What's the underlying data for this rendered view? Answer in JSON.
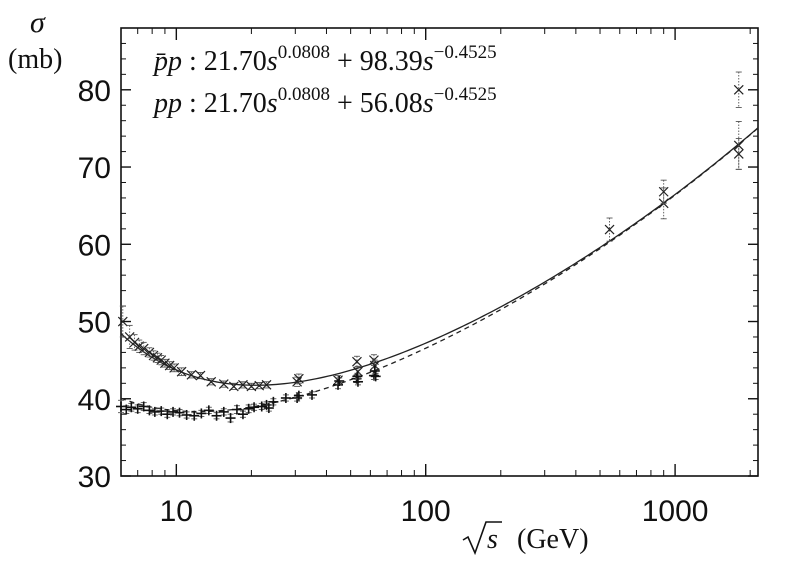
{
  "chart_data": {
    "type": "scatter",
    "title": "",
    "ylabel_symbol": "σ",
    "ylabel_unit": "(mb)",
    "xlabel_sqrt": "√s",
    "xlabel_unit": "(GeV)",
    "xscale": "log",
    "xlim": [
      6,
      2150
    ],
    "ylim": [
      30,
      88
    ],
    "yticks": [
      30,
      40,
      50,
      60,
      70,
      80
    ],
    "ytick_labels": [
      "30",
      "40",
      "50",
      "60",
      "70",
      "80"
    ],
    "xticks": [
      10,
      100,
      1000
    ],
    "xtick_labels": [
      "10",
      "100",
      "1000"
    ],
    "grid": false,
    "legend": {
      "placement": "top-left",
      "entries": [
        {
          "id": "pbarp",
          "prefix": "p̄p",
          "coef1": "21.70",
          "var1": "s",
          "exp1": "0.0808",
          "coef2": "+ 98.39",
          "var2": "s",
          "exp2": "−0.4525"
        },
        {
          "id": "pp",
          "prefix": "pp",
          "coef1": "21.70",
          "var1": "s",
          "exp1": "0.0808",
          "coef2": "+ 56.08",
          "var2": "s",
          "exp2": "−0.4525"
        }
      ]
    },
    "fits": [
      {
        "name": "p̄p fit",
        "style": "solid",
        "A": 21.7,
        "eps": 0.0808,
        "B": 98.39,
        "eta": 0.4525
      },
      {
        "name": "pp fit",
        "style": "dashed",
        "A": 21.7,
        "eps": 0.0808,
        "B": 56.08,
        "eta": 0.4525
      }
    ],
    "series": [
      {
        "name": "p̄p data",
        "marker": "x",
        "points": [
          [
            6.1,
            50.0,
            2.0
          ],
          [
            6.5,
            48.0,
            1.5
          ],
          [
            6.8,
            47.3,
            1.0
          ],
          [
            7.1,
            46.8,
            0.8
          ],
          [
            7.4,
            46.5,
            0.8
          ],
          [
            7.8,
            46.0,
            0.6
          ],
          [
            8.1,
            45.6,
            0.6
          ],
          [
            8.4,
            45.3,
            0.6
          ],
          [
            8.7,
            45.0,
            0.6
          ],
          [
            9.0,
            44.6,
            0.5
          ],
          [
            9.4,
            44.3,
            0.5
          ],
          [
            9.8,
            44.0,
            0.5
          ],
          [
            10.5,
            43.5,
            0.5
          ],
          [
            11.5,
            43.1,
            0.4
          ],
          [
            12.5,
            43.0,
            0.4
          ],
          [
            13.8,
            42.2,
            0.4
          ],
          [
            15.5,
            41.9,
            0.4
          ],
          [
            17.0,
            41.6,
            0.4
          ],
          [
            18.5,
            41.8,
            0.4
          ],
          [
            20.0,
            41.6,
            0.4
          ],
          [
            21.5,
            41.7,
            0.4
          ],
          [
            23.0,
            41.8,
            0.4
          ],
          [
            30.5,
            42.2,
            0.6
          ],
          [
            31.0,
            42.6,
            0.6
          ],
          [
            44.5,
            42.4,
            0.6
          ],
          [
            53.0,
            44.8,
            0.7
          ],
          [
            53.5,
            43.5,
            0.7
          ],
          [
            62.0,
            45.0,
            0.7
          ],
          [
            62.5,
            44.3,
            0.7
          ],
          [
            546,
            61.9,
            1.5
          ],
          [
            900,
            65.3,
            2.0
          ],
          [
            900,
            66.8,
            1.5
          ],
          [
            1800,
            80.0,
            2.3
          ],
          [
            1800,
            72.8,
            3.1
          ],
          [
            1800,
            71.7,
            2.0
          ]
        ]
      },
      {
        "name": "pp data",
        "marker": "+",
        "points": [
          [
            6.0,
            39.0,
            0.8
          ],
          [
            6.3,
            38.6,
            0.5
          ],
          [
            6.6,
            38.9,
            0.5
          ],
          [
            7.0,
            38.7,
            0.5
          ],
          [
            7.4,
            39.0,
            0.5
          ],
          [
            7.8,
            38.5,
            0.4
          ],
          [
            8.2,
            38.3,
            0.4
          ],
          [
            8.7,
            38.4,
            0.4
          ],
          [
            9.2,
            38.0,
            0.4
          ],
          [
            9.7,
            38.3,
            0.4
          ],
          [
            10.3,
            38.2,
            0.4
          ],
          [
            11.0,
            37.9,
            0.4
          ],
          [
            11.8,
            37.8,
            0.4
          ],
          [
            12.6,
            38.1,
            0.4
          ],
          [
            13.5,
            38.5,
            0.4
          ],
          [
            14.5,
            37.8,
            0.4
          ],
          [
            15.5,
            38.3,
            0.4
          ],
          [
            16.5,
            37.5,
            0.5
          ],
          [
            17.5,
            38.6,
            0.5
          ],
          [
            18.5,
            38.0,
            0.4
          ],
          [
            19.5,
            38.7,
            0.5
          ],
          [
            20.5,
            38.9,
            0.4
          ],
          [
            22.0,
            39.0,
            0.4
          ],
          [
            23.0,
            39.2,
            0.4
          ],
          [
            23.5,
            38.8,
            0.4
          ],
          [
            24.5,
            39.6,
            0.4
          ],
          [
            27.5,
            40.1,
            0.4
          ],
          [
            30.5,
            40.1,
            0.4
          ],
          [
            31.0,
            40.4,
            0.4
          ],
          [
            35.0,
            40.5,
            0.4
          ],
          [
            44.5,
            41.8,
            0.5
          ],
          [
            45.0,
            42.3,
            0.4
          ],
          [
            52.8,
            42.6,
            0.5
          ],
          [
            53.2,
            42.9,
            0.4
          ],
          [
            53.5,
            42.2,
            0.4
          ],
          [
            62.0,
            43.0,
            0.5
          ],
          [
            62.5,
            43.6,
            0.4
          ],
          [
            63.0,
            42.9,
            0.4
          ]
        ]
      }
    ]
  }
}
